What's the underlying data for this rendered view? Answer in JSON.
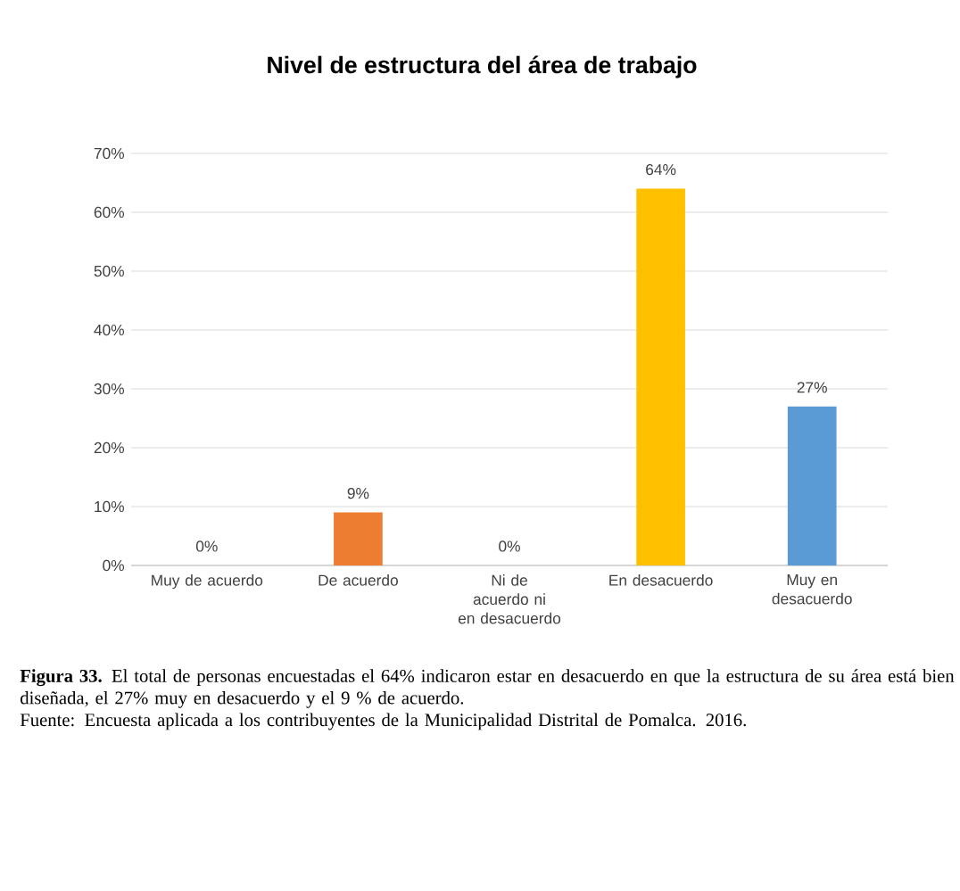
{
  "chart_data": {
    "type": "bar",
    "title": "Nivel de estructura del área de trabajo",
    "categories": [
      "Muy de acuerdo",
      "De acuerdo",
      "Ni de acuerdo ni en desacuerdo",
      "En desacuerdo",
      "Muy en desacuerdo"
    ],
    "values": [
      0,
      9,
      0,
      64,
      27
    ],
    "colors": [
      "#4472c4",
      "#ed7d31",
      "#a5a5a5",
      "#ffc000",
      "#5b9bd5"
    ],
    "value_labels": [
      "0%",
      "9%",
      "0%",
      "64%",
      "27%"
    ],
    "ylim": [
      0,
      70
    ],
    "yticks": [
      {
        "value": 0,
        "label": "0%"
      },
      {
        "value": 10,
        "label": "10%"
      },
      {
        "value": 20,
        "label": "20%"
      },
      {
        "value": 30,
        "label": "30%"
      },
      {
        "value": 40,
        "label": "40%"
      },
      {
        "value": 50,
        "label": "50%"
      },
      {
        "value": 60,
        "label": "60%"
      },
      {
        "value": 70,
        "label": "70%"
      }
    ],
    "grid": "y",
    "annotations": [
      "**Figura 33.** El total de personas encuestadas el 64% indicaron estar en desacuerdo en que la estructura de su área está bien diseñada, el 27% muy en desacuerdo y el 9 % de acuerdo.",
      "Fuente: Encuesta aplicada a los contribuyentes de la Municipalidad Distrital de Pomalca. 2016."
    ]
  }
}
